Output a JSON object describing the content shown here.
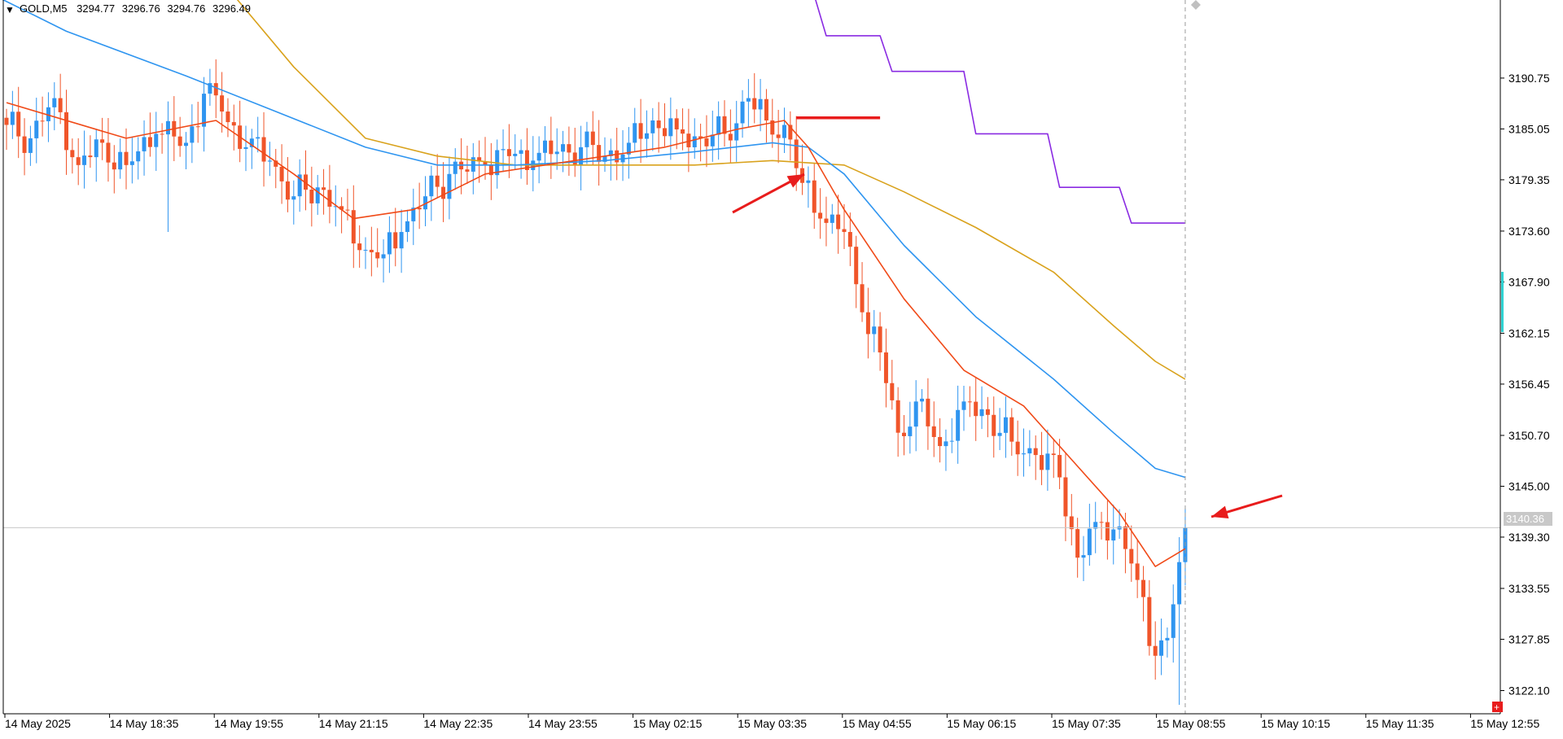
{
  "header": {
    "symbol": "GOLD,M5",
    "open": "3294.77",
    "high": "3296.76",
    "low": "3294.76",
    "close": "3296.49"
  },
  "colors": {
    "background": "#ffffff",
    "bull": "#2f95f0",
    "bear": "#f0552a",
    "ema_fast": "#f04a18",
    "ema_mid": "#2f95f0",
    "ema_slow": "#d9a21c",
    "step_line": "#8a2be2",
    "marker": "#e81c1c",
    "price_line": "#c8c8c8",
    "cyan_marker": "#2fd2d2"
  },
  "current_price_label": "3140.36",
  "chart_data": {
    "type": "candlestick",
    "symbol": "GOLD",
    "timeframe": "M5",
    "ylim": [
      3119.5,
      3199.5
    ],
    "y_ticks": [
      "3190.75",
      "3185.05",
      "3179.35",
      "3173.60",
      "3167.90",
      "3162.15",
      "3156.45",
      "3150.70",
      "3145.00",
      "3139.30",
      "3133.55",
      "3127.85",
      "3122.10"
    ],
    "x_ticks": [
      "14 May 2025",
      "14 May 18:35",
      "14 May 19:55",
      "14 May 21:15",
      "14 May 22:35",
      "14 May 23:55",
      "15 May 02:15",
      "15 May 03:35",
      "15 May 04:55",
      "15 May 06:15",
      "15 May 07:35",
      "15 May 08:55",
      "15 May 10:15",
      "15 May 11:35",
      "15 May 12:55"
    ],
    "current_price": 3140.36,
    "ohlc_anchor": [
      {
        "t": 0,
        "c": 3185.5
      },
      {
        "t": 4,
        "c": 3184.0
      },
      {
        "t": 8,
        "c": 3188.5
      },
      {
        "t": 12,
        "c": 3181.0
      },
      {
        "t": 16,
        "c": 3183.5
      },
      {
        "t": 20,
        "c": 3181.0
      },
      {
        "t": 25,
        "c": 3184.5
      },
      {
        "t": 30,
        "c": 3183.5
      },
      {
        "t": 33,
        "c": 3189.0
      },
      {
        "t": 36,
        "c": 3187.0
      },
      {
        "t": 40,
        "c": 3183.0
      },
      {
        "t": 44,
        "c": 3181.5
      },
      {
        "t": 48,
        "c": 3177.5
      },
      {
        "t": 52,
        "c": 3178.5
      },
      {
        "t": 56,
        "c": 3176.0
      },
      {
        "t": 60,
        "c": 3171.5
      },
      {
        "t": 63,
        "c": 3171.0
      },
      {
        "t": 66,
        "c": 3173.5
      },
      {
        "t": 70,
        "c": 3177.5
      },
      {
        "t": 74,
        "c": 3180.0
      },
      {
        "t": 80,
        "c": 3181.0
      },
      {
        "t": 84,
        "c": 3182.0
      },
      {
        "t": 88,
        "c": 3181.5
      },
      {
        "t": 92,
        "c": 3182.5
      },
      {
        "t": 96,
        "c": 3183.0
      },
      {
        "t": 100,
        "c": 3182.0
      },
      {
        "t": 104,
        "c": 3183.5
      },
      {
        "t": 108,
        "c": 3186.0
      },
      {
        "t": 112,
        "c": 3185.0
      },
      {
        "t": 116,
        "c": 3184.0
      },
      {
        "t": 120,
        "c": 3184.5
      },
      {
        "t": 124,
        "c": 3188.5
      },
      {
        "t": 127,
        "c": 3186.0
      },
      {
        "t": 130,
        "c": 3185.5
      },
      {
        "t": 133,
        "c": 3179.0
      },
      {
        "t": 136,
        "c": 3175.0
      },
      {
        "t": 140,
        "c": 3173.5
      },
      {
        "t": 143,
        "c": 3164.5
      },
      {
        "t": 146,
        "c": 3160.0
      },
      {
        "t": 149,
        "c": 3151.0
      },
      {
        "t": 152,
        "c": 3154.5
      },
      {
        "t": 156,
        "c": 3149.5
      },
      {
        "t": 160,
        "c": 3154.5
      },
      {
        "t": 164,
        "c": 3153.0
      },
      {
        "t": 168,
        "c": 3150.0
      },
      {
        "t": 172,
        "c": 3148.5
      },
      {
        "t": 176,
        "c": 3146.0
      },
      {
        "t": 179,
        "c": 3137.0
      },
      {
        "t": 182,
        "c": 3141.0
      },
      {
        "t": 186,
        "c": 3140.5
      },
      {
        "t": 189,
        "c": 3134.5
      },
      {
        "t": 192,
        "c": 3126.0
      },
      {
        "t": 194,
        "c": 3128.0
      },
      {
        "t": 196,
        "c": 3136.5
      },
      {
        "t": 197,
        "c": 3140.36
      }
    ],
    "ema_fast_points": [
      [
        0,
        3188
      ],
      [
        20,
        3184
      ],
      [
        35,
        3186
      ],
      [
        48,
        3180
      ],
      [
        58,
        3175
      ],
      [
        68,
        3176
      ],
      [
        80,
        3180
      ],
      [
        95,
        3181.5
      ],
      [
        110,
        3183
      ],
      [
        122,
        3185
      ],
      [
        130,
        3186
      ],
      [
        134,
        3183
      ],
      [
        140,
        3176
      ],
      [
        150,
        3166
      ],
      [
        160,
        3158
      ],
      [
        170,
        3154
      ],
      [
        178,
        3148
      ],
      [
        186,
        3142
      ],
      [
        192,
        3136
      ],
      [
        197,
        3138
      ]
    ],
    "ema_mid_points": [
      [
        -2,
        3200
      ],
      [
        10,
        3196
      ],
      [
        30,
        3191
      ],
      [
        45,
        3187
      ],
      [
        60,
        3183
      ],
      [
        72,
        3181
      ],
      [
        85,
        3181
      ],
      [
        100,
        3181.5
      ],
      [
        115,
        3182.5
      ],
      [
        128,
        3183.5
      ],
      [
        134,
        3183
      ],
      [
        140,
        3180
      ],
      [
        150,
        3172
      ],
      [
        162,
        3164
      ],
      [
        175,
        3157
      ],
      [
        185,
        3151
      ],
      [
        192,
        3147
      ],
      [
        197,
        3146
      ]
    ],
    "ema_slow_points": [
      [
        38,
        3200
      ],
      [
        48,
        3192
      ],
      [
        60,
        3184
      ],
      [
        72,
        3182
      ],
      [
        85,
        3181
      ],
      [
        100,
        3181
      ],
      [
        115,
        3181
      ],
      [
        128,
        3181.5
      ],
      [
        140,
        3181
      ],
      [
        150,
        3178
      ],
      [
        162,
        3174
      ],
      [
        175,
        3169
      ],
      [
        185,
        3163
      ],
      [
        192,
        3159
      ],
      [
        197,
        3157
      ]
    ],
    "step_line_points": [
      [
        135,
        3200
      ],
      [
        137,
        3195.5
      ],
      [
        146,
        3195.5
      ],
      [
        148,
        3191.5
      ],
      [
        160,
        3191.5
      ],
      [
        162,
        3184.5
      ],
      [
        174,
        3184.5
      ],
      [
        176,
        3178.5
      ],
      [
        186,
        3178.5
      ],
      [
        188,
        3174.5
      ],
      [
        197,
        3174.5
      ]
    ],
    "red_level": {
      "price": 3186.3,
      "t_start": 132,
      "t_end": 146
    }
  }
}
